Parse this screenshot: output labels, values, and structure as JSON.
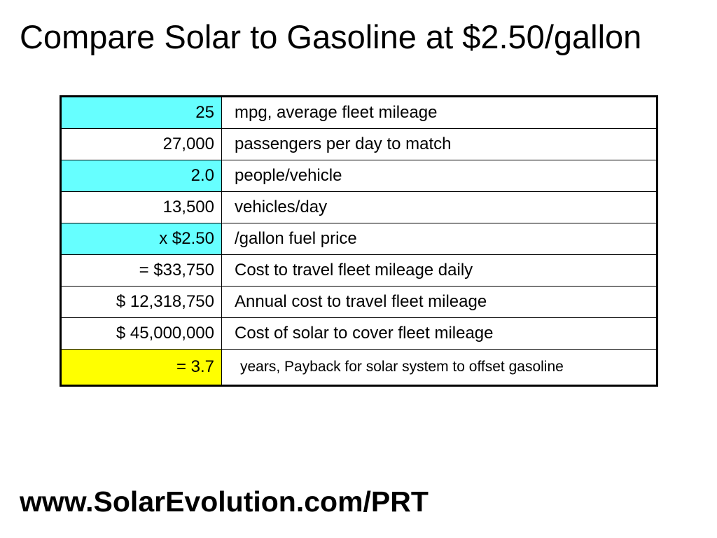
{
  "slide": {
    "title": "Compare Solar to Gasoline at $2.50/gallon",
    "footer_url": "www.SolarEvolution.com/PRT"
  },
  "colors": {
    "input_highlight": "#66FFFF",
    "result_highlight": "#FFFF00",
    "plain": "#FFFFFF",
    "border": "#000000"
  },
  "table": {
    "rows": [
      {
        "value": "25",
        "description": "mpg, average fleet mileage",
        "highlight": "input"
      },
      {
        "value": "27,000",
        "description": "passengers per day to match",
        "highlight": "plain"
      },
      {
        "value": "2.0",
        "description": "people/vehicle",
        "highlight": "input"
      },
      {
        "value": "13,500",
        "description": "vehicles/day",
        "highlight": "plain"
      },
      {
        "value": "x $2.50",
        "description": "/gallon fuel price",
        "highlight": "input"
      },
      {
        "value": "= $33,750",
        "description": "Cost to travel fleet mileage daily",
        "highlight": "plain"
      },
      {
        "value": "$ 12,318,750",
        "description": "Annual cost to travel fleet mileage",
        "highlight": "plain"
      },
      {
        "value": "$ 45,000,000",
        "description": "Cost of solar to cover fleet mileage",
        "highlight": "plain"
      },
      {
        "value": "= 3.7",
        "description": "years, Payback for solar system to offset gasoline",
        "highlight": "result"
      }
    ]
  }
}
